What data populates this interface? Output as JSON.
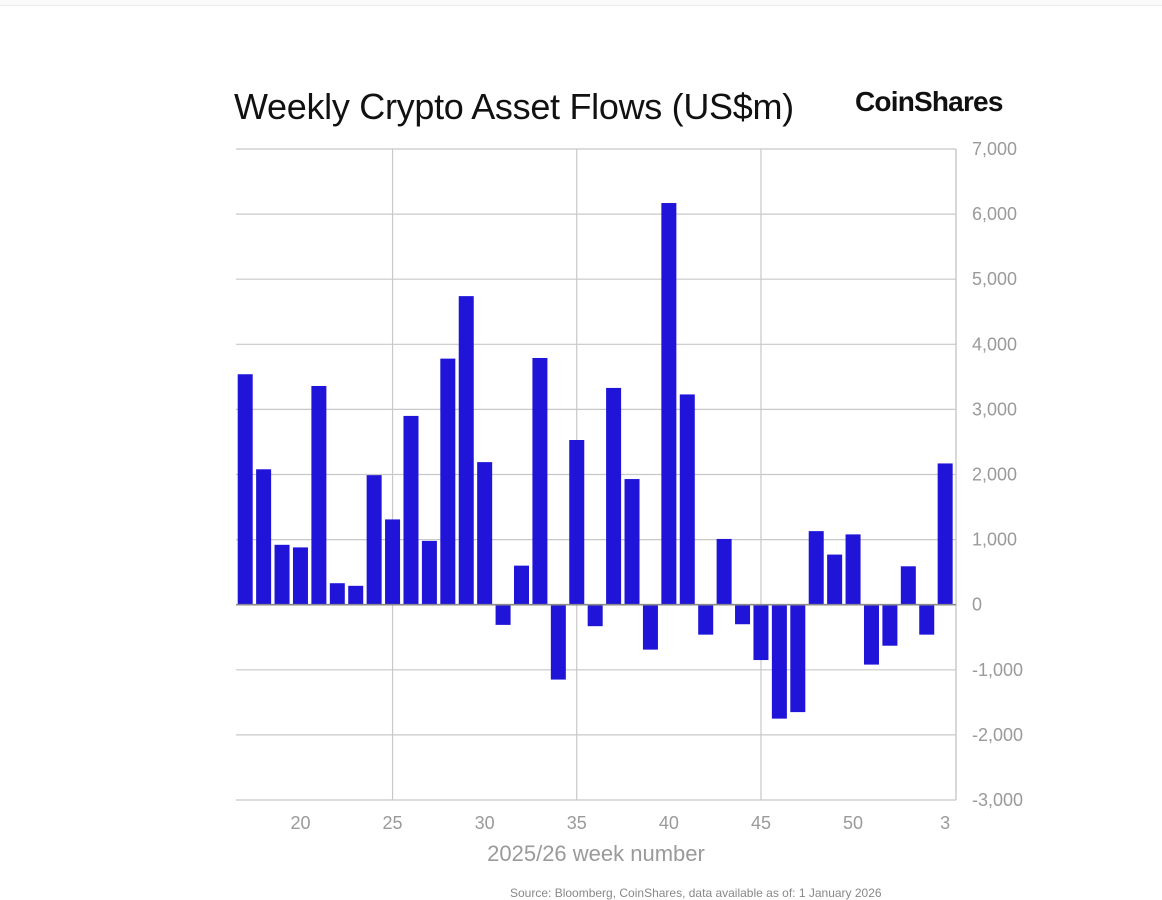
{
  "brand": {
    "logo_text": "CoinShares"
  },
  "colors": {
    "bar": "#1f14d8",
    "grid": "#c8c8c8",
    "tick_text": "#9a9a9a",
    "axis_label": "#9a9a9a",
    "baseline": "#8a8a8a"
  },
  "chart_data": {
    "type": "bar",
    "title": "Weekly Crypto Asset Flows (US$m)",
    "xlabel": "2025/26 week number",
    "ylabel": "",
    "ylim": [
      -3000,
      7000
    ],
    "y_ticks": [
      7000,
      6000,
      5000,
      4000,
      3000,
      2000,
      1000,
      0,
      -1000,
      -2000,
      -3000
    ],
    "y_tick_labels": [
      "7,000",
      "6,000",
      "5,000",
      "4,000",
      "3,000",
      "2,000",
      "1,000",
      "0",
      "-1,000",
      "-2,000",
      "-3,000"
    ],
    "y_axis_side": "right",
    "x_tick_labels": [
      "20",
      "25",
      "30",
      "35",
      "40",
      "45",
      "50",
      "3"
    ],
    "x_tick_weeks": [
      20,
      25,
      30,
      35,
      40,
      45,
      50,
      55
    ],
    "x_vertical_grid_weeks": [
      25,
      35,
      45
    ],
    "grid": true,
    "legend": "none",
    "categories": [
      "17",
      "18",
      "19",
      "20",
      "21",
      "22",
      "23",
      "24",
      "25",
      "26",
      "27",
      "28",
      "29",
      "30",
      "31",
      "32",
      "33",
      "34",
      "35",
      "36",
      "37",
      "38",
      "39",
      "40",
      "41",
      "42",
      "43",
      "44",
      "45",
      "46",
      "47",
      "48",
      "49",
      "50",
      "51",
      "52",
      "1",
      "2",
      "3"
    ],
    "weeks": [
      17,
      18,
      19,
      20,
      21,
      22,
      23,
      24,
      25,
      26,
      27,
      28,
      29,
      30,
      31,
      32,
      33,
      34,
      35,
      36,
      37,
      38,
      39,
      40,
      41,
      42,
      43,
      44,
      45,
      46,
      47,
      48,
      49,
      50,
      51,
      52,
      53,
      54,
      55
    ],
    "values": [
      3540,
      2080,
      920,
      880,
      3360,
      330,
      290,
      1990,
      1310,
      2900,
      980,
      3780,
      4740,
      2190,
      -310,
      600,
      3790,
      -1150,
      2530,
      -330,
      3330,
      1930,
      -690,
      6170,
      3230,
      -460,
      1010,
      -300,
      -850,
      -1750,
      -1650,
      1130,
      770,
      1080,
      -920,
      -630,
      590,
      -460,
      2170
    ]
  },
  "source": "Source: Bloomberg, CoinShares, data available as of: 1 January 2026"
}
